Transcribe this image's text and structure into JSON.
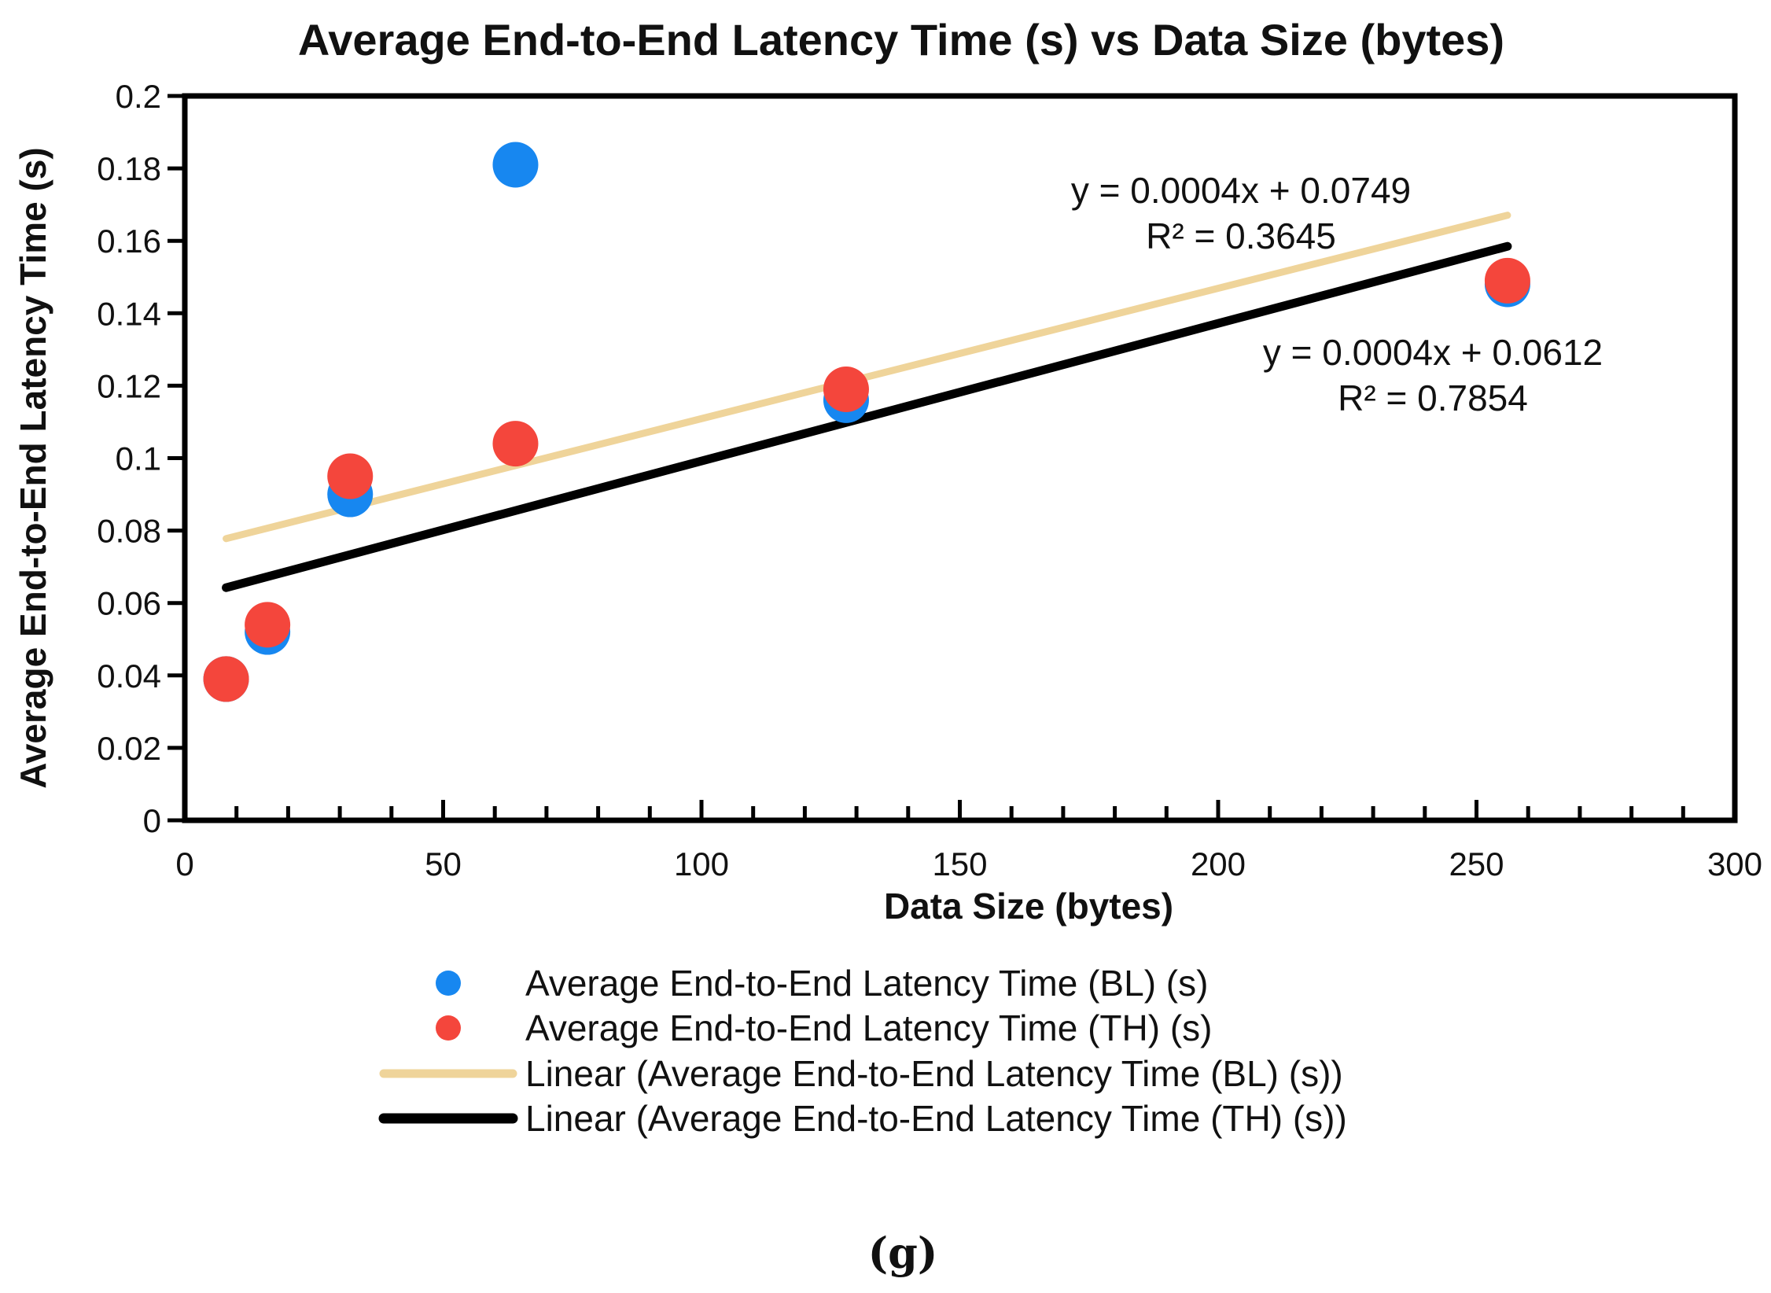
{
  "chart_data": {
    "type": "scatter",
    "title": "Average End-to-End Latency Time (s) vs Data Size (bytes)",
    "xlabel": "Data Size (bytes)",
    "ylabel": "Average End-to-End Latency Time (s)",
    "xlim": [
      0,
      300
    ],
    "ylim": [
      0,
      0.2
    ],
    "x_ticks": [
      "0",
      "50",
      "100",
      "150",
      "200",
      "250",
      "300"
    ],
    "y_ticks": [
      "0",
      "0.02",
      "0.04",
      "0.06",
      "0.08",
      "0.1",
      "0.12",
      "0.14",
      "0.16",
      "0.18",
      "0.2"
    ],
    "grid": false,
    "legend_position": "bottom",
    "series": [
      {
        "name": "Average End-to-End Latency Time (BL) (s)",
        "color": "#1787f0",
        "x": [
          8,
          16,
          32,
          64,
          128,
          256
        ],
        "y": [
          0.039,
          0.052,
          0.09,
          0.181,
          0.116,
          0.148
        ]
      },
      {
        "name": "Average End-to-End Latency Time (TH) (s)",
        "color": "#f4463c",
        "x": [
          8,
          16,
          32,
          64,
          128,
          256
        ],
        "y": [
          0.039,
          0.054,
          0.095,
          0.104,
          0.119,
          0.149
        ]
      }
    ],
    "trendlines": [
      {
        "name": "Linear (Average End-to-End Latency Time (BL) (s))",
        "color": "#efd49a",
        "x_range": [
          8,
          256
        ],
        "slope": 0.00036,
        "intercept": 0.0749,
        "equation": "y = 0.0004x + 0.0749",
        "r2": "R² = 0.3645"
      },
      {
        "name": "Linear (Average End-to-End Latency Time (TH) (s))",
        "color": "#000000",
        "x_range": [
          8,
          256
        ],
        "slope": 0.00038,
        "intercept": 0.0612,
        "equation": "y = 0.0004x + 0.0612",
        "r2": "R² = 0.7854"
      }
    ]
  },
  "caption": "(g)"
}
